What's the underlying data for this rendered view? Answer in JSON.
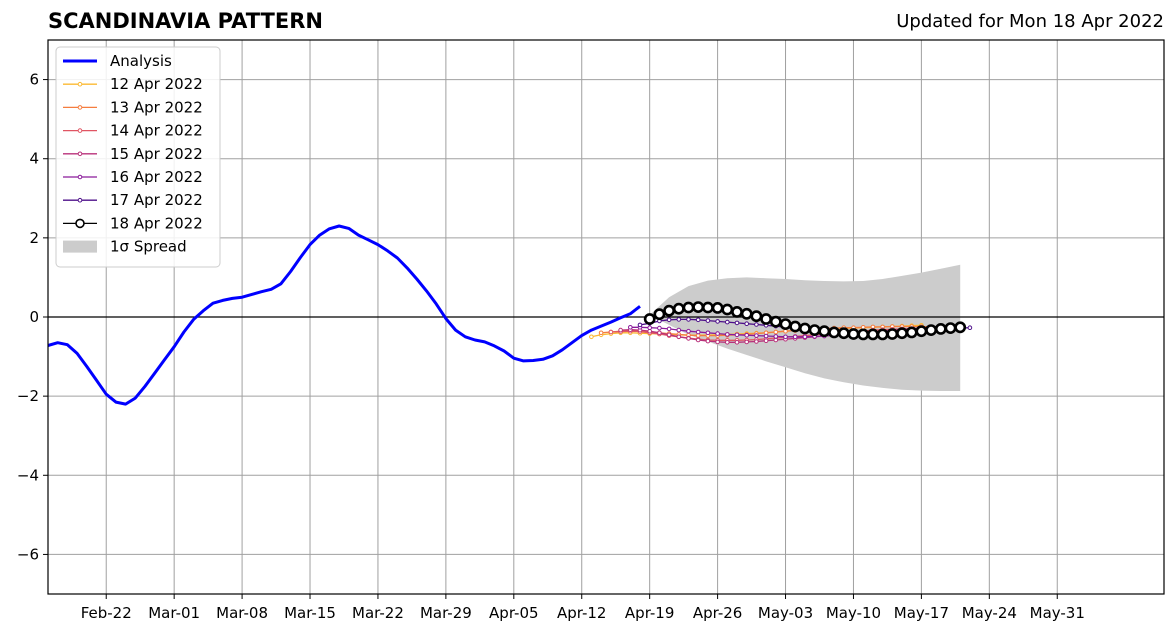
{
  "header": {
    "title": "SCANDINAVIA PATTERN",
    "updated": "Updated for Mon 18 Apr 2022"
  },
  "chart_data": {
    "type": "line",
    "title": "SCANDINAVIA PATTERN",
    "xlabel": "",
    "ylabel": "",
    "x_range_days": [
      -62,
      53
    ],
    "x_origin_date": "2022-04-19",
    "ylim": [
      -7,
      7
    ],
    "grid": true,
    "legend_position": "top-left",
    "xticks": [
      {
        "day": -56,
        "label": "Feb-22"
      },
      {
        "day": -49,
        "label": "Mar-01"
      },
      {
        "day": -42,
        "label": "Mar-08"
      },
      {
        "day": -35,
        "label": "Mar-15"
      },
      {
        "day": -28,
        "label": "Mar-22"
      },
      {
        "day": -21,
        "label": "Mar-29"
      },
      {
        "day": -14,
        "label": "Apr-05"
      },
      {
        "day": -7,
        "label": "Apr-12"
      },
      {
        "day": 0,
        "label": "Apr-19"
      },
      {
        "day": 7,
        "label": "Apr-26"
      },
      {
        "day": 14,
        "label": "May-03"
      },
      {
        "day": 21,
        "label": "May-10"
      },
      {
        "day": 28,
        "label": "May-17"
      },
      {
        "day": 35,
        "label": "May-24"
      },
      {
        "day": 42,
        "label": "May-31"
      }
    ],
    "yticks": [
      {
        "value": -6,
        "label": "−6"
      },
      {
        "value": -4,
        "label": "−4"
      },
      {
        "value": -2,
        "label": "−2"
      },
      {
        "value": 0,
        "label": "0"
      },
      {
        "value": 2,
        "label": "2"
      },
      {
        "value": 4,
        "label": "4"
      },
      {
        "value": 6,
        "label": "6"
      }
    ],
    "legend": [
      {
        "label": "Analysis",
        "color": "#0000ff",
        "kind": "thick-line"
      },
      {
        "label": "12 Apr 2022",
        "color": "#fbb932",
        "kind": "marker-line"
      },
      {
        "label": "13 Apr 2022",
        "color": "#f57d3f",
        "kind": "marker-line"
      },
      {
        "label": "14 Apr 2022",
        "color": "#e05563",
        "kind": "marker-line"
      },
      {
        "label": "15 Apr 2022",
        "color": "#b8307a",
        "kind": "marker-line"
      },
      {
        "label": "16 Apr 2022",
        "color": "#8a1a9b",
        "kind": "marker-line"
      },
      {
        "label": "17 Apr 2022",
        "color": "#4d0f8a",
        "kind": "marker-line"
      },
      {
        "label": "18 Apr 2022",
        "color": "#000000",
        "kind": "big-marker-line"
      },
      {
        "label": "1σ Spread",
        "color": "#cccccc",
        "kind": "patch"
      }
    ],
    "analysis": {
      "name": "Analysis",
      "color": "#0000ff",
      "x": [
        -62,
        -61,
        -60,
        -59,
        -58,
        -57,
        -56,
        -55,
        -54,
        -53,
        -52,
        -51,
        -50,
        -49,
        -48,
        -47,
        -46,
        -45,
        -44,
        -43,
        -42,
        -41,
        -40,
        -39,
        -38,
        -37,
        -36,
        -35,
        -34,
        -33,
        -32,
        -31,
        -30,
        -29,
        -28,
        -27,
        -26,
        -25,
        -24,
        -23,
        -22,
        -21,
        -20,
        -19,
        -18,
        -17,
        -16,
        -15,
        -14,
        -13,
        -12,
        -11,
        -10,
        -9,
        -8,
        -7,
        -6,
        -5,
        -4,
        -3,
        -2,
        -1
      ],
      "y": [
        -0.72,
        -0.65,
        -0.7,
        -0.92,
        -1.25,
        -1.6,
        -1.95,
        -2.15,
        -2.2,
        -2.05,
        -1.75,
        -1.42,
        -1.08,
        -0.75,
        -0.38,
        -0.06,
        0.16,
        0.35,
        0.42,
        0.47,
        0.5,
        0.57,
        0.64,
        0.7,
        0.84,
        1.15,
        1.5,
        1.83,
        2.07,
        2.23,
        2.3,
        2.24,
        2.07,
        1.95,
        1.83,
        1.67,
        1.49,
        1.24,
        0.96,
        0.66,
        0.33,
        -0.04,
        -0.33,
        -0.5,
        -0.58,
        -0.63,
        -0.73,
        -0.86,
        -1.04,
        -1.11,
        -1.1,
        -1.07,
        -0.98,
        -0.83,
        -0.65,
        -0.47,
        -0.33,
        -0.23,
        -0.13,
        -0.02,
        0.08,
        0.27
      ]
    },
    "spread": {
      "name": "1σ Spread",
      "x": [
        0,
        2,
        4,
        6,
        8,
        10,
        12,
        14,
        16,
        18,
        20,
        22,
        24,
        26,
        28,
        30,
        32
      ],
      "upper": [
        0.05,
        0.5,
        0.78,
        0.92,
        0.98,
        1.0,
        0.98,
        0.96,
        0.93,
        0.91,
        0.9,
        0.91,
        0.96,
        1.04,
        1.12,
        1.22,
        1.32
      ],
      "lower": [
        0.05,
        -0.2,
        -0.45,
        -0.62,
        -0.8,
        -0.96,
        -1.12,
        -1.27,
        -1.42,
        -1.55,
        -1.65,
        -1.73,
        -1.79,
        -1.84,
        -1.86,
        -1.87,
        -1.87
      ]
    },
    "series": [
      {
        "name": "12 Apr 2022",
        "color": "#fbb932",
        "x": [
          -6,
          -5,
          -4,
          -3,
          -2,
          -1,
          0,
          1,
          2,
          3,
          4,
          5,
          6,
          7,
          8,
          9,
          10,
          11,
          12,
          13,
          14,
          15,
          16,
          17,
          18,
          19,
          20,
          21,
          22,
          23,
          24,
          25,
          26,
          27,
          28
        ],
        "y": [
          -0.5,
          -0.45,
          -0.42,
          -0.4,
          -0.4,
          -0.41,
          -0.42,
          -0.43,
          -0.44,
          -0.45,
          -0.46,
          -0.46,
          -0.46,
          -0.45,
          -0.44,
          -0.43,
          -0.42,
          -0.41,
          -0.4,
          -0.38,
          -0.36,
          -0.34,
          -0.33,
          -0.32,
          -0.31,
          -0.3,
          -0.29,
          -0.28,
          -0.27,
          -0.26,
          -0.25,
          -0.24,
          -0.23,
          -0.22,
          -0.21
        ]
      },
      {
        "name": "13 Apr 2022",
        "color": "#f57d3f",
        "x": [
          -5,
          -4,
          -3,
          -2,
          -1,
          0,
          1,
          2,
          3,
          4,
          5,
          6,
          7,
          8,
          9,
          10,
          11,
          12,
          13,
          14,
          15,
          16,
          17,
          18,
          19,
          20,
          21,
          22,
          23,
          24,
          25,
          26,
          27,
          28,
          29
        ],
        "y": [
          -0.4,
          -0.38,
          -0.36,
          -0.35,
          -0.36,
          -0.38,
          -0.4,
          -0.42,
          -0.44,
          -0.46,
          -0.47,
          -0.47,
          -0.47,
          -0.46,
          -0.45,
          -0.44,
          -0.42,
          -0.4,
          -0.38,
          -0.36,
          -0.34,
          -0.32,
          -0.3,
          -0.29,
          -0.28,
          -0.27,
          -0.27,
          -0.26,
          -0.25,
          -0.25,
          -0.24,
          -0.24,
          -0.24,
          -0.24,
          -0.25
        ]
      },
      {
        "name": "14 Apr 2022",
        "color": "#e05563",
        "x": [
          -4,
          -3,
          -2,
          -1,
          0,
          1,
          2,
          3,
          4,
          5,
          6,
          7,
          8,
          9,
          10,
          11,
          12,
          13,
          14,
          15,
          16,
          17,
          18,
          19,
          20,
          21,
          22,
          23,
          24,
          25,
          26,
          27,
          28,
          29,
          30
        ],
        "y": [
          -0.38,
          -0.37,
          -0.36,
          -0.37,
          -0.4,
          -0.43,
          -0.47,
          -0.5,
          -0.53,
          -0.56,
          -0.58,
          -0.59,
          -0.59,
          -0.59,
          -0.58,
          -0.57,
          -0.55,
          -0.53,
          -0.51,
          -0.49,
          -0.47,
          -0.45,
          -0.43,
          -0.41,
          -0.39,
          -0.37,
          -0.35,
          -0.33,
          -0.32,
          -0.31,
          -0.3,
          -0.29,
          -0.29,
          -0.28,
          -0.28
        ]
      },
      {
        "name": "15 Apr 2022",
        "color": "#b8307a",
        "x": [
          -3,
          -2,
          -1,
          0,
          1,
          2,
          3,
          4,
          5,
          6,
          7,
          8,
          9,
          10,
          11,
          12,
          13,
          14,
          15,
          16,
          17,
          18,
          19,
          20,
          21,
          22,
          23,
          24,
          25,
          26,
          27,
          28,
          29,
          30,
          31
        ],
        "y": [
          -0.33,
          -0.32,
          -0.33,
          -0.36,
          -0.4,
          -0.45,
          -0.5,
          -0.54,
          -0.58,
          -0.61,
          -0.63,
          -0.64,
          -0.64,
          -0.63,
          -0.62,
          -0.6,
          -0.58,
          -0.56,
          -0.54,
          -0.52,
          -0.5,
          -0.48,
          -0.46,
          -0.44,
          -0.42,
          -0.4,
          -0.38,
          -0.36,
          -0.35,
          -0.33,
          -0.32,
          -0.31,
          -0.3,
          -0.3,
          -0.29
        ]
      },
      {
        "name": "16 Apr 2022",
        "color": "#8a1a9b",
        "x": [
          -2,
          -1,
          0,
          1,
          2,
          3,
          4,
          5,
          6,
          7,
          8,
          9,
          10,
          11,
          12,
          13,
          14,
          15,
          16,
          17,
          18,
          19,
          20,
          21,
          22,
          23,
          24,
          25,
          26,
          27,
          28,
          29,
          30,
          31,
          32
        ],
        "y": [
          -0.26,
          -0.26,
          -0.27,
          -0.28,
          -0.3,
          -0.33,
          -0.36,
          -0.38,
          -0.4,
          -0.42,
          -0.44,
          -0.45,
          -0.46,
          -0.47,
          -0.48,
          -0.49,
          -0.5,
          -0.5,
          -0.5,
          -0.49,
          -0.48,
          -0.46,
          -0.44,
          -0.42,
          -0.4,
          -0.38,
          -0.36,
          -0.34,
          -0.32,
          -0.3,
          -0.28,
          -0.27,
          -0.26,
          -0.25,
          -0.25
        ]
      },
      {
        "name": "17 Apr 2022",
        "color": "#4d0f8a",
        "x": [
          -1,
          0,
          1,
          2,
          3,
          4,
          5,
          6,
          7,
          8,
          9,
          10,
          11,
          12,
          13,
          14,
          15,
          16,
          17,
          18,
          19,
          20,
          21,
          22,
          23,
          24,
          25,
          26,
          27,
          28,
          29,
          30,
          31,
          32,
          33
        ],
        "y": [
          -0.2,
          -0.16,
          -0.1,
          -0.07,
          -0.06,
          -0.06,
          -0.07,
          -0.09,
          -0.11,
          -0.13,
          -0.15,
          -0.17,
          -0.19,
          -0.21,
          -0.23,
          -0.26,
          -0.3,
          -0.34,
          -0.38,
          -0.41,
          -0.43,
          -0.45,
          -0.45,
          -0.44,
          -0.43,
          -0.41,
          -0.39,
          -0.37,
          -0.35,
          -0.33,
          -0.31,
          -0.3,
          -0.29,
          -0.28,
          -0.27
        ]
      },
      {
        "name": "18 Apr 2022",
        "color": "#000000",
        "x": [
          0,
          1,
          2,
          3,
          4,
          5,
          6,
          7,
          8,
          9,
          10,
          11,
          12,
          13,
          14,
          15,
          16,
          17,
          18,
          19,
          20,
          21,
          22,
          23,
          24,
          25,
          26,
          27,
          28,
          29,
          30,
          31,
          32
        ],
        "y": [
          -0.05,
          0.07,
          0.16,
          0.21,
          0.24,
          0.25,
          0.24,
          0.23,
          0.19,
          0.13,
          0.08,
          0.02,
          -0.05,
          -0.12,
          -0.18,
          -0.24,
          -0.29,
          -0.33,
          -0.36,
          -0.39,
          -0.41,
          -0.43,
          -0.44,
          -0.44,
          -0.44,
          -0.43,
          -0.41,
          -0.39,
          -0.36,
          -0.33,
          -0.3,
          -0.28,
          -0.26
        ]
      }
    ]
  }
}
